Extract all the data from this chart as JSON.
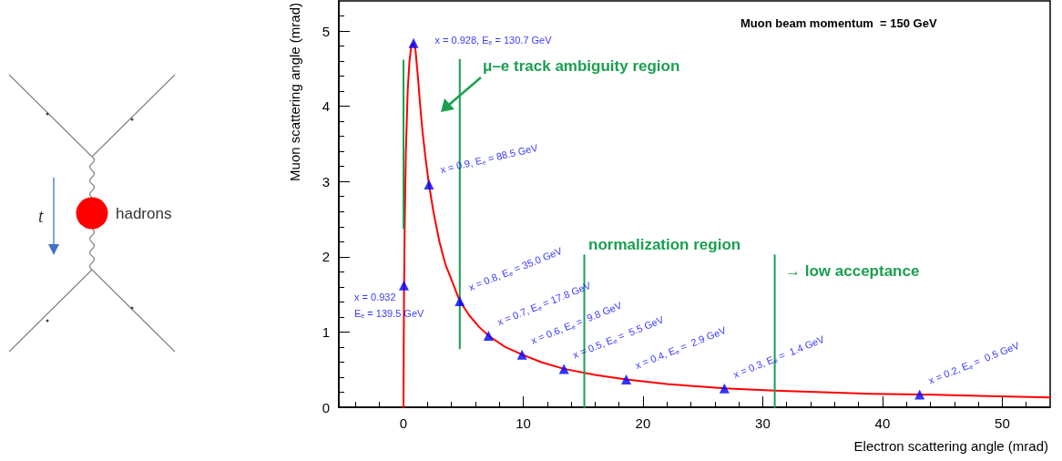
{
  "chart_data": {
    "type": "line",
    "xlabel": "Electron scattering angle (mrad)",
    "ylabel": "Muon scattering angle (mrad)",
    "xlim": [
      -5.4,
      54
    ],
    "xticks": [
      0,
      10,
      20,
      30,
      40,
      50
    ],
    "ylim": [
      0,
      5.4
    ],
    "yticks": [
      0,
      1,
      2,
      3,
      4,
      5
    ],
    "annotations": [
      "Muon beam momentum  = 150 GeV",
      "μ–e track ambiguity region",
      "normalization region",
      "→ low acceptance",
      "t",
      "hadrons"
    ],
    "series": [
      {
        "color": "#ff0000",
        "x": [
          0,
          0.02,
          0.05,
          0.1,
          0.2,
          0.35,
          0.5,
          0.65,
          0.84,
          1.0,
          1.2,
          1.4,
          1.6,
          1.85,
          2.13,
          2.5,
          3,
          3.5,
          4,
          4.7,
          5.5,
          6.3,
          7.1,
          8.5,
          9.9,
          11.5,
          13.4,
          16,
          18.6,
          22,
          26.8,
          31,
          35,
          39,
          43.1,
          48,
          54
        ],
        "values": [
          0,
          0.8,
          1.6,
          2.4,
          3.4,
          4.2,
          4.6,
          4.8,
          4.84,
          4.75,
          4.4,
          4.0,
          3.65,
          3.3,
          2.96,
          2.6,
          2.2,
          1.9,
          1.7,
          1.41,
          1.22,
          1.07,
          0.95,
          0.8,
          0.7,
          0.6,
          0.51,
          0.43,
          0.37,
          0.31,
          0.25,
          0.22,
          0.2,
          0.18,
          0.17,
          0.15,
          0.13
        ]
      },
      {
        "type": "scatter",
        "color": "#0000ff",
        "marker": "triangle",
        "x": [
          0.04,
          0.84,
          2.13,
          4.7,
          7.1,
          9.9,
          13.4,
          18.6,
          26.8,
          43.1
        ],
        "values": [
          1.62,
          4.84,
          2.96,
          1.41,
          0.95,
          0.7,
          0.51,
          0.37,
          0.25,
          0.17
        ],
        "value_labels": [
          "x = 0.932\nE$_{e}$ = 139.5 GeV",
          "x = 0.928, E$_{e}$ = 130.7 GeV",
          "x = 0.9, E$_{e}$ = 88.5 GeV",
          "x = 0.8, E$_{e}$ = 35.0 GeV",
          "x = 0.7, E$_{e}$ = 17.8 GeV",
          "x = 0.6, E$_{e}$ =  9.8 GeV",
          "x = 0.5, E$_{e}$ =  5.5 GeV",
          "x = 0.4, E$_{e}$ =  2.9 GeV",
          "x = 0.3, E$_{e}$ =  1.4 GeV",
          "x = 0.2, E$_{e}$ =  0.5 GeV"
        ]
      },
      {
        "color": "#1aa050",
        "x": [
          0,
          0
        ],
        "values": [
          2.38,
          4.61
        ]
      },
      {
        "color": "#1aa050",
        "x": [
          4.7,
          4.7
        ],
        "values": [
          0.78,
          4.62
        ]
      },
      {
        "color": "#1aa050",
        "x": [
          15.1,
          15.1
        ],
        "values": [
          0,
          2.02
        ]
      },
      {
        "color": "#1aa050",
        "x": [
          31,
          31
        ],
        "values": [
          0,
          2.02
        ]
      }
    ]
  }
}
